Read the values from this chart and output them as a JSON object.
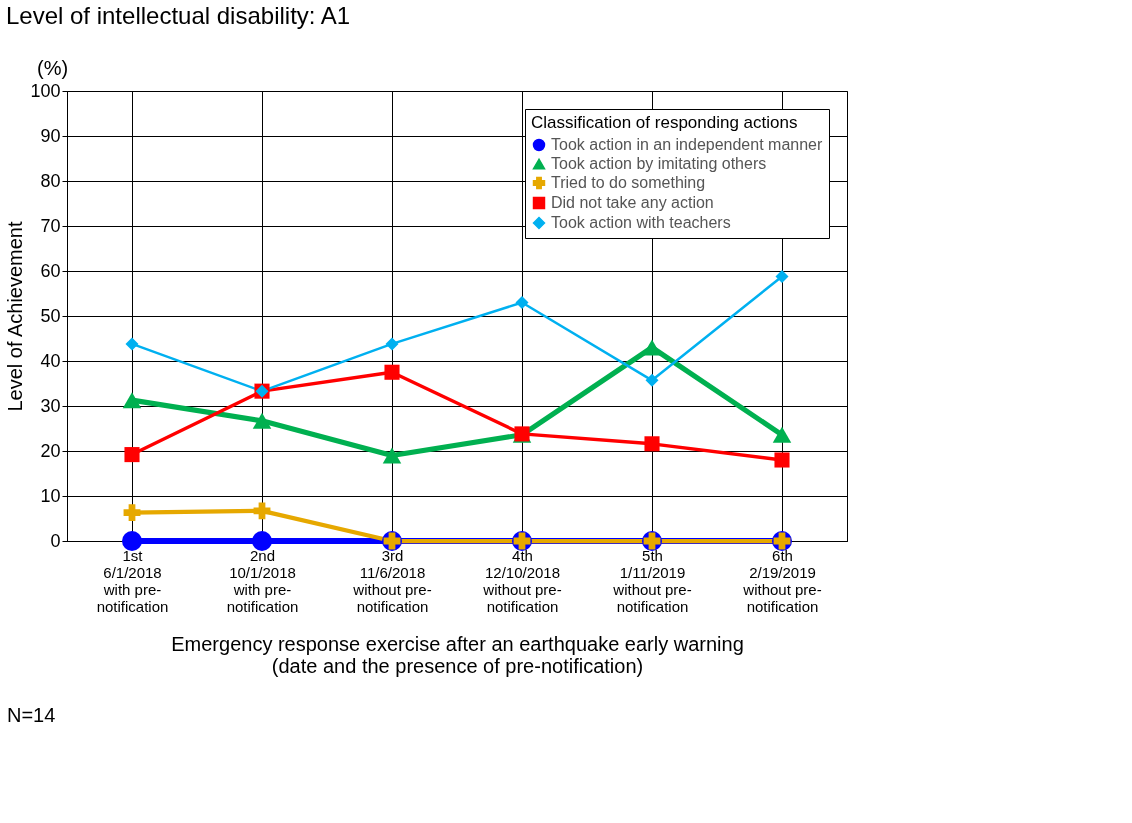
{
  "chart_data": {
    "type": "line",
    "title": "Level of intellectual disability: A1",
    "xlabel": "Emergency response exercise after an earthquake early warning\n(date and the presence of pre-notification)",
    "ylabel": "Level of Achievement",
    "legend_title": "Classification of responding actions",
    "annotations": [
      "(%)",
      "N=14"
    ],
    "categories": [
      "1st\n6/1/2018\nwith pre-\nnotification",
      "2nd\n10/1/2018\nwith pre-\nnotification",
      "3rd\n11/6/2018\nwithout pre-\nnotification",
      "4th\n12/10/2018\nwithout pre-\nnotification",
      "5th\n1/11/2019\nwithout pre-\nnotification",
      "6th\n2/19/2019\nwithout pre-\nnotification"
    ],
    "series": [
      {
        "name": "Took action in an independent manner",
        "color": "#0000ff",
        "marker": "circle",
        "values": [
          0,
          0,
          0,
          0,
          0,
          0
        ]
      },
      {
        "name": "Took action by imitating others",
        "color": "#00b050",
        "marker": "triangle",
        "values": [
          31.3,
          26.7,
          19,
          23.6,
          43,
          23.6
        ]
      },
      {
        "name": "Tried to do something",
        "color": "#e6a800",
        "marker": "cross",
        "values": [
          6.3,
          6.7,
          0,
          0,
          0,
          0
        ]
      },
      {
        "name": "Did not take any action",
        "color": "#ff0000",
        "marker": "square",
        "values": [
          19.2,
          33.3,
          37.5,
          23.8,
          21.6,
          18
        ]
      },
      {
        "name": "Took action with teachers",
        "color": "#00b0f0",
        "marker": "diamond",
        "values": [
          43.8,
          33.3,
          43.8,
          53,
          35.7,
          58.8
        ]
      }
    ],
    "ylim": [
      0,
      100
    ],
    "yticks": [
      0,
      10,
      20,
      30,
      40,
      50,
      60,
      70,
      80,
      90,
      100
    ],
    "grid": true,
    "legend": "top right",
    "line_style": "solid"
  }
}
